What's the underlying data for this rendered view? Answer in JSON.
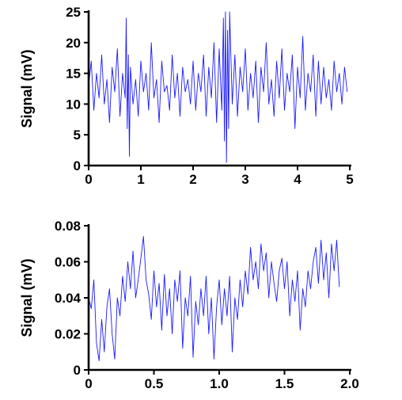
{
  "chart_data": [
    {
      "type": "line",
      "ylabel": "Signal (mV)",
      "xlabel": "",
      "xlim": [
        0,
        5
      ],
      "ylim": [
        0,
        25
      ],
      "xticks": [
        0,
        1,
        2,
        3,
        4,
        5
      ],
      "xtick_labels": [
        "0",
        "1",
        "2",
        "3",
        "4",
        "5"
      ],
      "yticks": [
        0,
        5,
        10,
        15,
        20,
        25
      ],
      "ytick_labels": [
        "0",
        "5",
        "10",
        "15",
        "20",
        "25"
      ],
      "grid": false,
      "series": [
        {
          "color": "#1a1aff",
          "x": [
            0,
            0.05,
            0.1,
            0.15,
            0.2,
            0.25,
            0.3,
            0.35,
            0.4,
            0.45,
            0.5,
            0.55,
            0.6,
            0.65,
            0.7,
            0.72,
            0.74,
            0.76,
            0.78,
            0.8,
            0.85,
            0.9,
            0.95,
            1.0,
            1.05,
            1.1,
            1.15,
            1.2,
            1.25,
            1.3,
            1.35,
            1.4,
            1.45,
            1.5,
            1.55,
            1.6,
            1.65,
            1.7,
            1.75,
            1.8,
            1.85,
            1.9,
            1.95,
            2.0,
            2.05,
            2.1,
            2.15,
            2.2,
            2.25,
            2.3,
            2.35,
            2.4,
            2.45,
            2.5,
            2.55,
            2.58,
            2.6,
            2.62,
            2.64,
            2.66,
            2.68,
            2.7,
            2.75,
            2.8,
            2.85,
            2.9,
            2.95,
            3.0,
            3.05,
            3.1,
            3.15,
            3.2,
            3.25,
            3.3,
            3.35,
            3.4,
            3.45,
            3.5,
            3.55,
            3.6,
            3.65,
            3.7,
            3.75,
            3.8,
            3.85,
            3.9,
            3.95,
            4.0,
            4.05,
            4.1,
            4.15,
            4.2,
            4.25,
            4.3,
            4.35,
            4.4,
            4.45,
            4.5,
            4.55,
            4.6,
            4.65,
            4.7,
            4.75,
            4.8,
            4.85,
            4.9,
            4.95
          ],
          "values": [
            13,
            17,
            9,
            15,
            11,
            18,
            10,
            14,
            7,
            16,
            12,
            19,
            8,
            15,
            11,
            24,
            6,
            18,
            1.5,
            16,
            10,
            14,
            8,
            17,
            12,
            15,
            9,
            20,
            11,
            14,
            7,
            17,
            12,
            13,
            9,
            18,
            11,
            15,
            8,
            16,
            12,
            14,
            10,
            17,
            9,
            15,
            12,
            18,
            8,
            16,
            11,
            20,
            7,
            19,
            9,
            24,
            4,
            25,
            0.5,
            22,
            6,
            25,
            10,
            18,
            8,
            16,
            12,
            19,
            9,
            15,
            11,
            17,
            7,
            16,
            12,
            20,
            10,
            14,
            8,
            17,
            11,
            19,
            9,
            15,
            12,
            18,
            6,
            16,
            11,
            21,
            9,
            15,
            12,
            18,
            8,
            17,
            10,
            16,
            11,
            14,
            9,
            17,
            12,
            15,
            10,
            16,
            12
          ]
        }
      ]
    },
    {
      "type": "line",
      "ylabel": "Signal (mV)",
      "xlabel": "",
      "xlim": [
        0,
        2.0
      ],
      "ylim": [
        0,
        0.08
      ],
      "xticks": [
        0,
        0.5,
        1.0,
        1.5,
        2.0
      ],
      "xtick_labels": [
        "0",
        "0.5",
        "1.0",
        "1.5",
        "2.0"
      ],
      "yticks": [
        0,
        0.02,
        0.04,
        0.06,
        0.08
      ],
      "ytick_labels": [
        "0",
        "0.02",
        "0.04",
        "0.06",
        "0.08"
      ],
      "grid": false,
      "series": [
        {
          "color": "#1a1aff",
          "x": [
            0,
            0.02,
            0.04,
            0.06,
            0.08,
            0.1,
            0.12,
            0.14,
            0.16,
            0.18,
            0.2,
            0.22,
            0.24,
            0.26,
            0.28,
            0.3,
            0.32,
            0.34,
            0.36,
            0.38,
            0.4,
            0.42,
            0.44,
            0.46,
            0.48,
            0.5,
            0.52,
            0.54,
            0.56,
            0.58,
            0.6,
            0.62,
            0.64,
            0.66,
            0.68,
            0.7,
            0.72,
            0.74,
            0.76,
            0.78,
            0.8,
            0.82,
            0.84,
            0.86,
            0.88,
            0.9,
            0.92,
            0.94,
            0.96,
            0.98,
            1.0,
            1.02,
            1.04,
            1.06,
            1.08,
            1.1,
            1.12,
            1.14,
            1.16,
            1.18,
            1.2,
            1.22,
            1.24,
            1.26,
            1.28,
            1.3,
            1.32,
            1.34,
            1.36,
            1.38,
            1.4,
            1.42,
            1.44,
            1.46,
            1.48,
            1.5,
            1.52,
            1.54,
            1.56,
            1.58,
            1.6,
            1.62,
            1.64,
            1.66,
            1.68,
            1.7,
            1.72,
            1.74,
            1.76,
            1.78,
            1.8,
            1.82,
            1.84,
            1.86,
            1.88,
            1.9,
            1.92
          ],
          "values": [
            0.04,
            0.034,
            0.05,
            0.015,
            0.005,
            0.028,
            0.01,
            0.035,
            0.045,
            0.02,
            0.006,
            0.04,
            0.03,
            0.052,
            0.038,
            0.06,
            0.045,
            0.066,
            0.04,
            0.05,
            0.062,
            0.074,
            0.05,
            0.042,
            0.028,
            0.055,
            0.035,
            0.048,
            0.022,
            0.053,
            0.03,
            0.045,
            0.02,
            0.05,
            0.038,
            0.055,
            0.012,
            0.04,
            0.03,
            0.052,
            0.007,
            0.038,
            0.025,
            0.045,
            0.03,
            0.052,
            0.02,
            0.04,
            0.006,
            0.035,
            0.05,
            0.025,
            0.045,
            0.03,
            0.052,
            0.01,
            0.04,
            0.028,
            0.05,
            0.035,
            0.055,
            0.042,
            0.068,
            0.05,
            0.06,
            0.045,
            0.07,
            0.055,
            0.065,
            0.04,
            0.06,
            0.048,
            0.038,
            0.055,
            0.062,
            0.045,
            0.06,
            0.03,
            0.05,
            0.038,
            0.055,
            0.022,
            0.045,
            0.035,
            0.055,
            0.045,
            0.06,
            0.068,
            0.048,
            0.072,
            0.05,
            0.065,
            0.04,
            0.07,
            0.055,
            0.072,
            0.046
          ]
        }
      ]
    }
  ]
}
